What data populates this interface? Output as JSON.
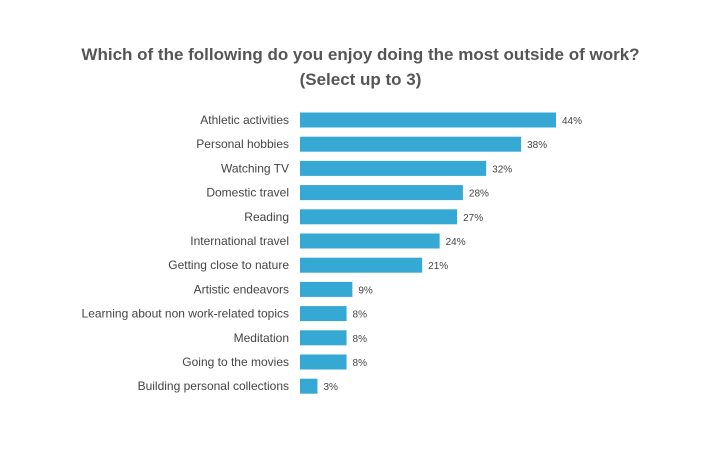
{
  "chart_data": {
    "type": "bar",
    "orientation": "horizontal",
    "title_line1": "Which of the following do you enjoy doing the most outside of work?",
    "title_line2": "(Select up to 3)",
    "categories": [
      "Athletic activities",
      "Personal hobbies",
      "Watching TV",
      "Domestic travel",
      "Reading",
      "International travel",
      "Getting close to nature",
      "Artistic endeavors",
      "Learning about non work-related topics",
      "Meditation",
      "Going to the movies",
      "Building personal collections"
    ],
    "values": [
      44,
      38,
      32,
      28,
      27,
      24,
      21,
      9,
      8,
      8,
      8,
      3
    ],
    "value_labels": [
      "44%",
      "38%",
      "32%",
      "28%",
      "27%",
      "24%",
      "21%",
      "9%",
      "8%",
      "8%",
      "8%",
      "3%"
    ],
    "unit": "%",
    "xlim": [
      0,
      44
    ],
    "grid": false,
    "legend": "none",
    "bar_color": "#35a8d4"
  }
}
